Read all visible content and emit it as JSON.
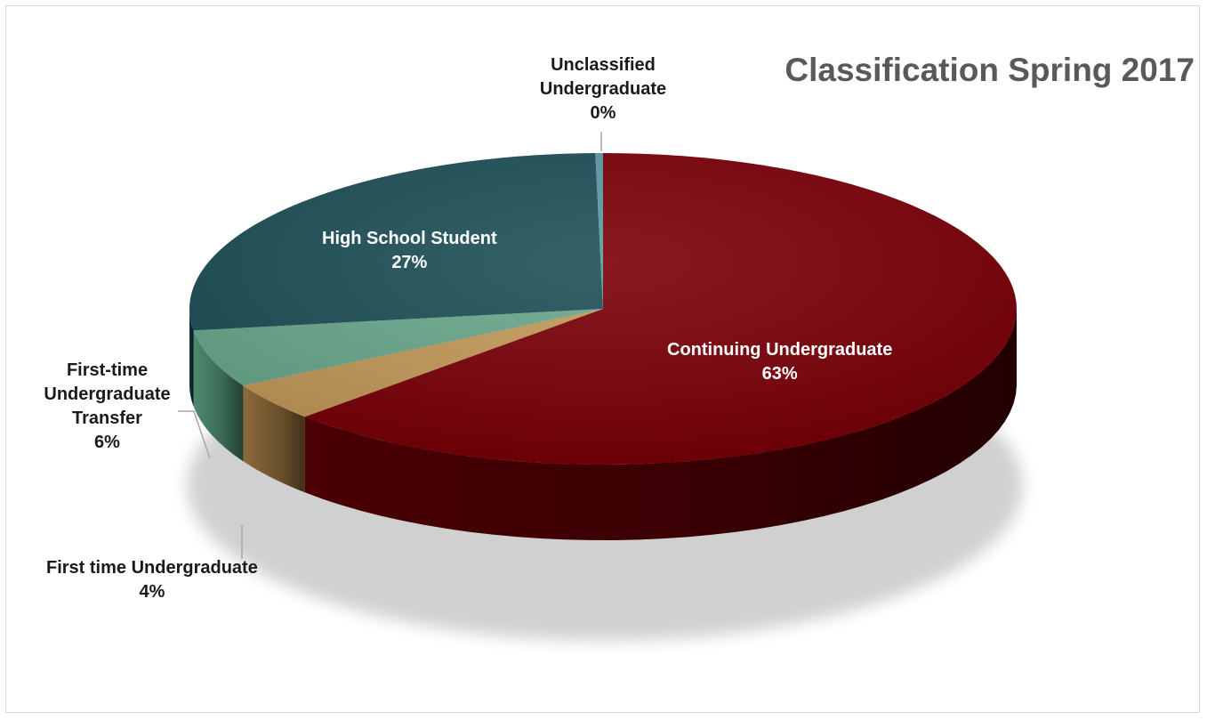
{
  "chart_data": {
    "type": "pie",
    "title": "Classification Spring 2017",
    "slices": [
      {
        "label": "Continuing Undergraduate",
        "value": 63,
        "display": "63%",
        "color": "#7a0007",
        "side_color": "#4a0004",
        "label_color": "#ffffff"
      },
      {
        "label": "First time Undergraduate",
        "value": 4,
        "display": "4%",
        "color": "#c49a5a",
        "side_color": "#8c6a3a",
        "label_color": "#1a1a1a"
      },
      {
        "label": "First-time Undergraduate Transfer",
        "value": 6,
        "display": "6%",
        "color": "#69a88d",
        "side_color": "#4d8a70",
        "label_color": "#1a1a1a"
      },
      {
        "label": "High School Student",
        "value": 27,
        "display": "27%",
        "color": "#1e4f57",
        "side_color": "#123238",
        "label_color": "#ffffff"
      },
      {
        "label": "Unclassified Undergraduate",
        "value": 0.3,
        "display": "0%",
        "color": "#5b9aa6",
        "side_color": "#3f7580",
        "label_color": "#1a1a1a"
      }
    ],
    "legend": "none",
    "style": "3d-pie"
  }
}
